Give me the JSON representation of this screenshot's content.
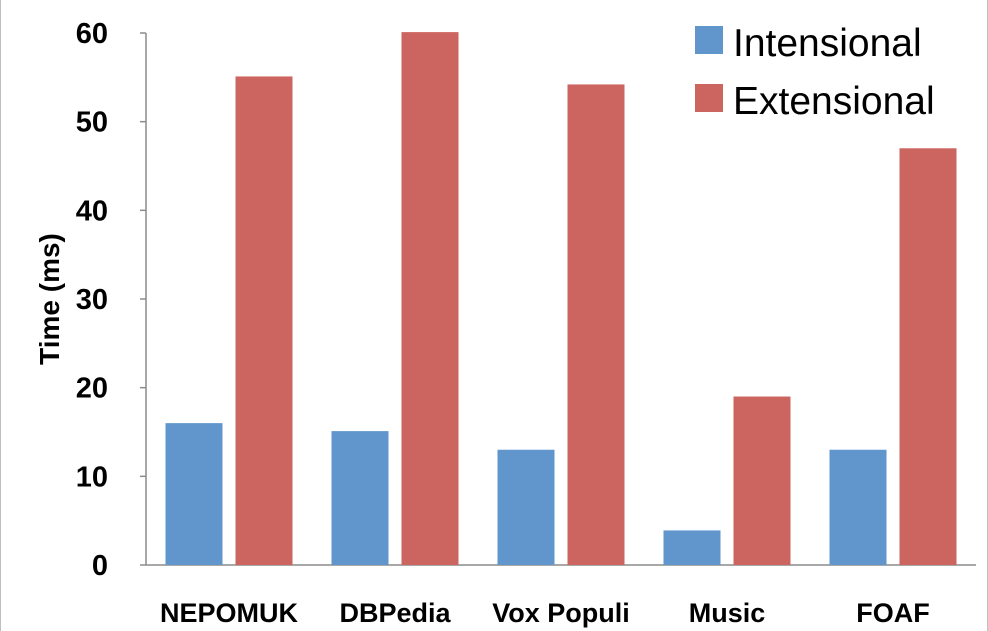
{
  "chart_data": {
    "type": "bar",
    "categories": [
      "NEPOMUK",
      "DBPedia",
      "Vox Populi",
      "Music",
      "FOAF"
    ],
    "series": [
      {
        "name": "Intensional",
        "color": "#6096cb",
        "values": [
          16,
          15.1,
          13,
          3.9,
          13
        ]
      },
      {
        "name": "Extensional",
        "color": "#cc6560",
        "values": [
          55.1,
          60.1,
          54.2,
          19,
          47
        ]
      }
    ],
    "title": "",
    "xlabel": "",
    "ylabel": "Time (ms)",
    "ylim": [
      0,
      60
    ],
    "yticks": [
      0,
      10,
      20,
      30,
      40,
      50,
      60
    ],
    "grid": false,
    "legend_position": "top-right"
  }
}
